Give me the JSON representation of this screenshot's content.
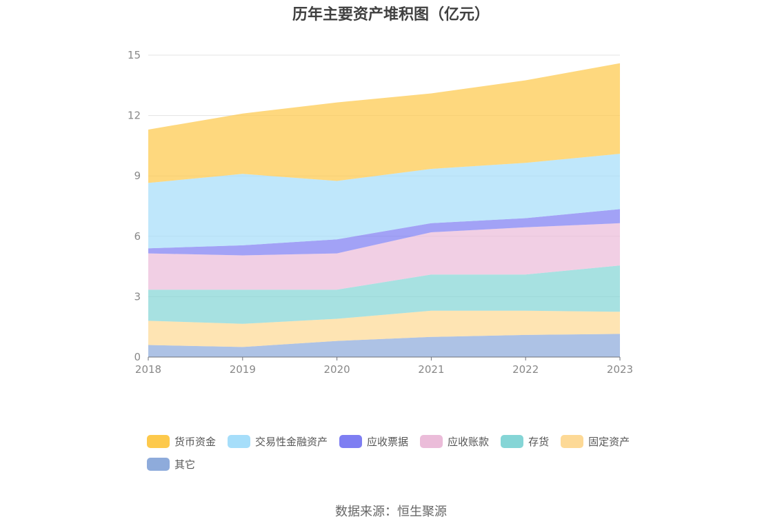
{
  "chart_data": {
    "type": "area",
    "stacked": true,
    "title": "历年主要资产堆积图（亿元）",
    "x": [
      "2018",
      "2019",
      "2020",
      "2021",
      "2022",
      "2023"
    ],
    "ylim": [
      0,
      15
    ],
    "yticks": [
      "0",
      "3",
      "6",
      "9",
      "12",
      "15"
    ],
    "grid": true,
    "legend_position": "bottom",
    "series": [
      {
        "name": "其它",
        "color": "#8eabdb",
        "values": [
          0.6,
          0.5,
          0.8,
          1.0,
          1.1,
          1.15
        ]
      },
      {
        "name": "固定资产",
        "color": "#fdd996",
        "values": [
          1.2,
          1.15,
          1.1,
          1.3,
          1.2,
          1.1
        ]
      },
      {
        "name": "存货",
        "color": "#85d5d6",
        "values": [
          1.55,
          1.7,
          1.45,
          1.8,
          1.8,
          2.3
        ]
      },
      {
        "name": "应收账款",
        "color": "#ebbcd9",
        "values": [
          1.8,
          1.7,
          1.8,
          2.1,
          2.35,
          2.1
        ]
      },
      {
        "name": "应收票据",
        "color": "#7e7ef2",
        "values": [
          0.25,
          0.5,
          0.7,
          0.45,
          0.45,
          0.7
        ]
      },
      {
        "name": "交易性金融资产",
        "color": "#a6defa",
        "values": [
          3.25,
          3.55,
          2.9,
          2.7,
          2.75,
          2.75
        ]
      },
      {
        "name": "货币资金",
        "color": "#fdc94c",
        "values": [
          2.65,
          3.0,
          3.9,
          3.75,
          4.1,
          4.5
        ]
      }
    ],
    "legend_order": [
      "货币资金",
      "交易性金融资产",
      "应收票据",
      "应收账款",
      "存货",
      "固定资产",
      "其它"
    ]
  },
  "source_text": "数据来源：恒生聚源"
}
